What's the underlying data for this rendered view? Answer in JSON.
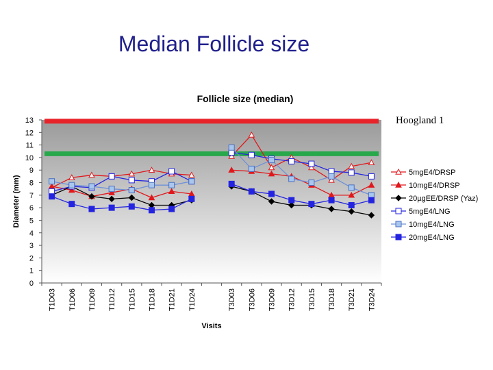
{
  "slide_title": "Median Follicle size",
  "side_note": "Hoogland 1",
  "colors": {
    "red_line": "#e8242a",
    "green_line": "#27a84a",
    "red_series": "#e0181c",
    "black_series": "#000000",
    "blue_series": "#2424e0",
    "light_blue_series": "#6f90d8"
  },
  "chart_data": {
    "type": "line",
    "title": "Follicle size (median)",
    "xlabel": "Visits",
    "ylabel": "Diameter (mm)",
    "ylim": [
      0,
      13
    ],
    "yticks": [
      0,
      1,
      2,
      3,
      4,
      5,
      6,
      7,
      8,
      9,
      10,
      11,
      12,
      13
    ],
    "grid": false,
    "legend_position": "right",
    "categories": [
      "T1D03",
      "T1D06",
      "T1D09",
      "T1D12",
      "T1D15",
      "T1D18",
      "T1D21",
      "T1D24",
      "",
      "T3D03",
      "T3D06",
      "T3D09",
      "T3D12",
      "T3D15",
      "T3D18",
      "T3D21",
      "T3D24"
    ],
    "reference_lines": [
      {
        "value": 12.9,
        "color": "#e8242a"
      },
      {
        "value": 10.3,
        "color": "#27a84a"
      }
    ],
    "series": [
      {
        "name": "5mgE4/DRSP",
        "color": "#e0181c",
        "marker": "triangle-open",
        "values": [
          7.6,
          8.4,
          8.6,
          8.5,
          8.7,
          9.0,
          8.7,
          8.6,
          null,
          10.1,
          11.8,
          9.2,
          10.0,
          9.2,
          8.2,
          9.3,
          9.6
        ]
      },
      {
        "name": "10mgE4/DRSP",
        "color": "#e0181c",
        "marker": "triangle-filled",
        "values": [
          7.7,
          7.4,
          6.9,
          7.2,
          7.5,
          6.8,
          7.3,
          7.1,
          null,
          9.0,
          8.9,
          8.7,
          8.5,
          7.8,
          7.0,
          7.0,
          7.8
        ]
      },
      {
        "name": "20µgEE/DRSP (Yaz)",
        "color": "#000000",
        "marker": "diamond-filled",
        "values": [
          7.0,
          7.7,
          6.9,
          6.7,
          6.8,
          6.2,
          6.2,
          6.6,
          null,
          7.7,
          7.3,
          6.5,
          6.2,
          6.2,
          5.9,
          5.7,
          5.4
        ]
      },
      {
        "name": "5mgE4/LNG",
        "color": "#2424e0",
        "marker": "square-open",
        "values": [
          7.3,
          7.7,
          7.6,
          8.5,
          8.2,
          8.1,
          8.9,
          8.1,
          null,
          10.4,
          10.2,
          9.9,
          9.7,
          9.5,
          8.9,
          8.8,
          8.5
        ]
      },
      {
        "name": "10mgE4/LNG",
        "color": "#6f90d8",
        "marker": "square-light",
        "values": [
          8.1,
          7.8,
          7.7,
          7.5,
          7.4,
          7.8,
          7.8,
          8.1,
          null,
          10.8,
          9.1,
          9.8,
          8.3,
          8.0,
          8.5,
          7.6,
          7.0
        ]
      },
      {
        "name": "20mgE4/LNG",
        "color": "#2424e0",
        "marker": "square-filled",
        "values": [
          6.9,
          6.3,
          5.9,
          6.0,
          6.1,
          5.8,
          5.9,
          6.7,
          null,
          7.9,
          7.3,
          7.1,
          6.6,
          6.3,
          6.6,
          6.2,
          6.6
        ]
      }
    ]
  }
}
